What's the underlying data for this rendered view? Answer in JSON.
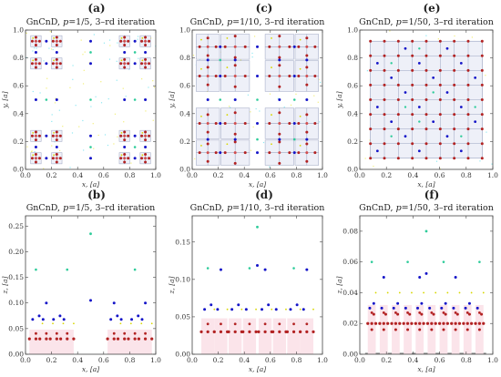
{
  "chart_data": [
    {
      "id": "a",
      "panel_label": "(a)",
      "view": "xy",
      "title": "GnCnD, p=1/5, 3–rd iteration",
      "title_pre": "GnCnD, ",
      "title_p": "p",
      "title_post": "=1/5, 3–rd iteration",
      "type": "scatter",
      "xlabel": "x, [a]",
      "ylabel": "y, [a]",
      "xlim": [
        0,
        1
      ],
      "ylim": [
        0,
        1
      ],
      "xticks": [
        0,
        0.2,
        0.4,
        0.6,
        0.8,
        1
      ],
      "xtick_labels": [
        "0.0",
        "0.2",
        "0.4",
        "0.6",
        "0.8",
        "1.0"
      ],
      "yticks": [
        0,
        0.2,
        0.4,
        0.6,
        0.8,
        1
      ],
      "ytick_labels": [
        "0.0",
        "0.2",
        "0.4",
        "0.6",
        "0.8",
        "1.0"
      ],
      "grid_p": 5,
      "pattern": "cross",
      "box_outlines": true,
      "boxes": [
        [
          0.04,
          0.12
        ],
        [
          0.2,
          0.28
        ],
        [
          0.72,
          0.8
        ],
        [
          0.88,
          0.96
        ]
      ],
      "series_colors": {
        "red": "#b22222",
        "blue": "#1515c8",
        "green": "#2ecc9a",
        "yellow": "#d8d800"
      }
    },
    {
      "id": "b",
      "panel_label": "(b)",
      "view": "xz",
      "title": "GnCnD, p=1/5, 3–rd iteration",
      "title_pre": "GnCnD, ",
      "title_p": "p",
      "title_post": "=1/5, 3–rd iteration",
      "type": "scatter",
      "xlabel": "x, [a]",
      "ylabel": "z, [a]",
      "xlim": [
        0,
        1
      ],
      "ylim": [
        0,
        0.27
      ],
      "xticks": [
        0,
        0.2,
        0.4,
        0.6,
        0.8,
        1
      ],
      "xtick_labels": [
        "0.0",
        "0.2",
        "0.4",
        "0.6",
        "0.8",
        "1.0"
      ],
      "yticks": [
        0,
        0.05,
        0.1,
        0.15,
        0.2,
        0.25
      ],
      "ytick_labels": [
        "0.00",
        "0.05",
        "0.10",
        "0.15",
        "0.20",
        "0.25"
      ],
      "grid_p": 5,
      "z_levels": {
        "red": 0.03,
        "blue1": 0.068,
        "blue2": 0.1,
        "green1": 0.165,
        "green2": 0.235
      },
      "series_colors": {
        "red": "#b22222",
        "blue": "#1515c8",
        "green": "#2ecc9a",
        "yellow": "#d8d800"
      }
    },
    {
      "id": "c",
      "panel_label": "(c)",
      "view": "xy",
      "title": "GnCnD, p=1/10, 3–rd iteration",
      "title_pre": "GnCnD, ",
      "title_p": "p",
      "title_post": "=1/10, 3–rd iteration",
      "type": "scatter",
      "xlabel": "x, [a]",
      "ylabel": "y, [a]",
      "xlim": [
        0,
        1
      ],
      "ylim": [
        0,
        1
      ],
      "xticks": [
        0,
        0.2,
        0.4,
        0.6,
        0.8,
        1
      ],
      "xtick_labels": [
        "0.0",
        "0.2",
        "0.4",
        "0.6",
        "0.8",
        "1.0"
      ],
      "yticks": [
        0,
        0.2,
        0.4,
        0.6,
        0.8,
        1
      ],
      "ytick_labels": [
        "0.0",
        "0.2",
        "0.4",
        "0.6",
        "0.8",
        "1.0"
      ],
      "grid_p": 10,
      "pattern": "cross",
      "box_outlines": true,
      "boxes": [
        [
          0.03,
          0.21
        ],
        [
          0.22,
          0.44
        ],
        [
          0.56,
          0.78
        ],
        [
          0.79,
          0.97
        ]
      ],
      "series_colors": {
        "red": "#b22222",
        "blue": "#1515c8",
        "green": "#2ecc9a",
        "yellow": "#d8d800"
      }
    },
    {
      "id": "d",
      "panel_label": "(d)",
      "view": "xz",
      "title": "GnCnD, p=1/10, 3–rd iteration",
      "title_pre": "GnCnD, ",
      "title_p": "p",
      "title_post": "=1/10, 3–rd iteration",
      "type": "scatter",
      "xlabel": "x, [a]",
      "ylabel": "z, [a]",
      "xlim": [
        0,
        1
      ],
      "ylim": [
        0,
        0.185
      ],
      "xticks": [
        0,
        0.2,
        0.4,
        0.6,
        0.8,
        1
      ],
      "xtick_labels": [
        "0.0",
        "0.2",
        "0.4",
        "0.6",
        "0.8",
        "1.0"
      ],
      "yticks": [
        0,
        0.05,
        0.1,
        0.15
      ],
      "ytick_labels": [
        "0.00",
        "0.05",
        "0.10",
        "0.15"
      ],
      "grid_p": 10,
      "z_levels": {
        "red": 0.03,
        "blue1": 0.06,
        "blue2": 0.113,
        "green1": 0.115,
        "green2": 0.17
      },
      "series_colors": {
        "red": "#b22222",
        "blue": "#1515c8",
        "green": "#2ecc9a",
        "yellow": "#d8d800"
      }
    },
    {
      "id": "e",
      "panel_label": "(e)",
      "view": "xy",
      "title": "GnCnD, p=1/50, 3–rd iteration",
      "title_pre": "GnCnD, ",
      "title_p": "p",
      "title_post": "=1/50, 3–rd iteration",
      "type": "scatter",
      "xlabel": "x, [a]",
      "ylabel": "y, [a]",
      "xlim": [
        0,
        1
      ],
      "ylim": [
        0,
        1
      ],
      "xticks": [
        0,
        0.2,
        0.4,
        0.6,
        0.8,
        1
      ],
      "xtick_labels": [
        "0.0",
        "0.2",
        "0.4",
        "0.6",
        "0.8",
        "1.0"
      ],
      "yticks": [
        0,
        0.2,
        0.4,
        0.6,
        0.8,
        1
      ],
      "ytick_labels": [
        "0.0",
        "0.2",
        "0.4",
        "0.6",
        "0.8",
        "1.0"
      ],
      "grid_p": 50,
      "pattern": "grid",
      "box_outlines": true,
      "boxes": [
        [
          0.08,
          0.92
        ]
      ],
      "series_colors": {
        "red": "#b22222",
        "blue": "#1515c8",
        "green": "#2ecc9a",
        "yellow": "#d8d800"
      }
    },
    {
      "id": "f",
      "panel_label": "(f)",
      "view": "xz",
      "title": "GnCnD, p=1/50, 3–rd iteration",
      "title_pre": "GnCnD, ",
      "title_p": "p",
      "title_post": "=1/50, 3–rd iteration",
      "type": "scatter",
      "xlabel": "x, [a]",
      "ylabel": "z, [a]",
      "xlim": [
        0,
        1
      ],
      "ylim": [
        0,
        0.09
      ],
      "xticks": [
        0,
        0.2,
        0.4,
        0.6,
        0.8,
        1
      ],
      "xtick_labels": [
        "0.0",
        "0.2",
        "0.4",
        "0.6",
        "0.8",
        "1.0"
      ],
      "yticks": [
        0,
        0.02,
        0.04,
        0.06,
        0.08
      ],
      "ytick_labels": [
        "0.00",
        "0.02",
        "0.04",
        "0.06",
        "0.08"
      ],
      "grid_p": 50,
      "z_levels": {
        "red": 0.02,
        "blue1": 0.03,
        "blue2": 0.05,
        "green1": 0.06,
        "green2": 0.08
      },
      "series_colors": {
        "red": "#b22222",
        "blue": "#1515c8",
        "green": "#2ecc9a",
        "yellow": "#d8d800"
      }
    }
  ]
}
